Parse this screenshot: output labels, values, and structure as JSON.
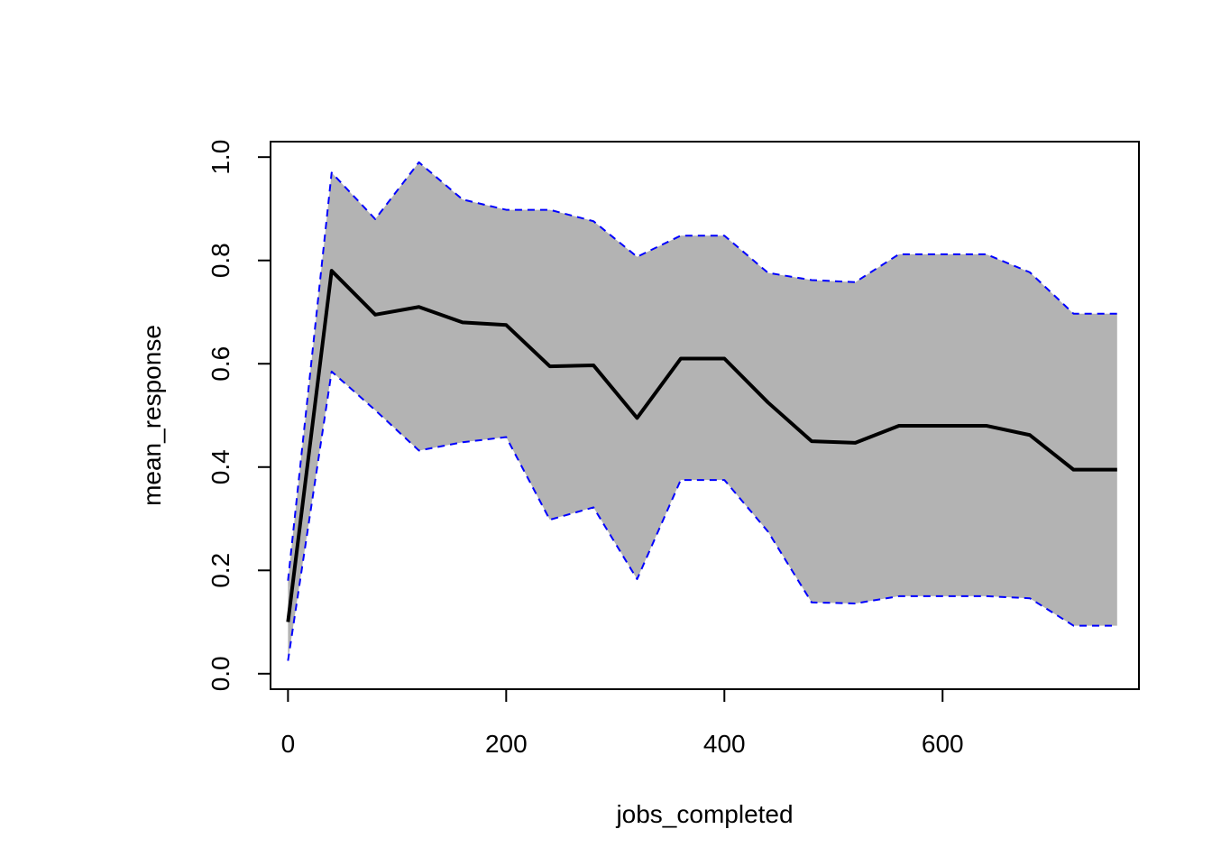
{
  "chart_data": {
    "type": "area",
    "title": "",
    "xlabel": "jobs_completed",
    "ylabel": "mean_response",
    "xlim": [
      -16,
      780
    ],
    "ylim": [
      -0.03,
      1.03
    ],
    "x_ticks": [
      0,
      200,
      400,
      600
    ],
    "x_tick_labels": [
      "0",
      "200",
      "400",
      "600"
    ],
    "y_ticks": [
      0.0,
      0.2,
      0.4,
      0.6,
      0.8,
      1.0
    ],
    "y_tick_labels": [
      "0.0",
      "0.2",
      "0.4",
      "0.6",
      "0.8",
      "1.0"
    ],
    "grid": false,
    "legend": "none",
    "x": [
      0,
      40,
      80,
      120,
      160,
      200,
      240,
      280,
      320,
      360,
      400,
      440,
      480,
      520,
      560,
      600,
      640,
      680,
      720,
      760
    ],
    "series": [
      {
        "role": "mean",
        "values": [
          0.1,
          0.78,
          0.695,
          0.71,
          0.68,
          0.675,
          0.595,
          0.597,
          0.495,
          0.61,
          0.61,
          0.525,
          0.45,
          0.447,
          0.48,
          0.48,
          0.48,
          0.462,
          0.395,
          0.395
        ],
        "color": "#000000",
        "style": "solid"
      },
      {
        "role": "upper",
        "values": [
          0.18,
          0.97,
          0.88,
          0.99,
          0.918,
          0.898,
          0.898,
          0.876,
          0.807,
          0.848,
          0.848,
          0.776,
          0.762,
          0.758,
          0.812,
          0.812,
          0.812,
          0.777,
          0.697,
          0.697
        ],
        "color": "#0000ff",
        "style": "dashed"
      },
      {
        "role": "lower",
        "values": [
          0.025,
          0.585,
          0.51,
          0.432,
          0.448,
          0.458,
          0.298,
          0.322,
          0.183,
          0.375,
          0.375,
          0.275,
          0.138,
          0.136,
          0.15,
          0.15,
          0.15,
          0.146,
          0.093,
          0.093
        ],
        "color": "#0000ff",
        "style": "dashed"
      }
    ],
    "band_color": "#b3b3b3"
  }
}
